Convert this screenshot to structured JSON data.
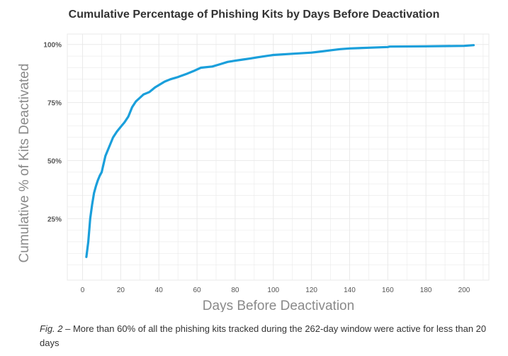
{
  "caption": {
    "fig_label": "Fig. 2",
    "text": " – More than 60% of all the phishing kits tracked during the 262-day window were active for less than 20 days"
  },
  "colors": {
    "line": "#1a9fdb",
    "grid": "#e9e9e9",
    "axis_title": "#8a8a8a"
  },
  "chart_data": {
    "type": "line",
    "title": "Cumulative Percentage of Phishing Kits by Days Before Deactivation",
    "xlabel": "Days Before Deactivation",
    "ylabel": "Cumulative % of Kits Deactivated",
    "xlim": [
      -8,
      213
    ],
    "ylim": [
      -1.5,
      104.5
    ],
    "xticks": [
      0,
      20,
      40,
      60,
      80,
      100,
      120,
      140,
      160,
      180,
      200
    ],
    "xtick_labels": [
      "0",
      "20",
      "40",
      "60",
      "80",
      "100",
      "120",
      "140",
      "160",
      "180",
      "200"
    ],
    "yticks": [
      25,
      50,
      75,
      100
    ],
    "ytick_labels": [
      "25%",
      "50%",
      "75%",
      "100%"
    ],
    "grid": true,
    "series": [
      {
        "x": [
          2,
          3,
          4,
          5,
          6,
          7,
          8,
          9,
          10,
          12,
          14,
          16,
          18,
          20,
          22,
          24,
          26,
          28,
          30,
          32,
          35,
          38,
          40,
          43,
          46,
          50,
          55,
          58,
          62,
          68,
          72,
          76,
          80,
          84,
          88,
          92,
          96,
          100,
          110,
          120,
          125,
          130,
          135,
          140,
          150,
          160,
          161,
          180,
          200,
          205
        ],
        "y": [
          8.5,
          15,
          25,
          31,
          36,
          39,
          41.5,
          43.5,
          45,
          52,
          56,
          60,
          62.5,
          64.5,
          66.5,
          69,
          73,
          75.5,
          77,
          78.5,
          79.5,
          81.5,
          82.5,
          84,
          85,
          86,
          87.5,
          88.5,
          90,
          90.5,
          91.5,
          92.5,
          93,
          93.5,
          94,
          94.5,
          95,
          95.5,
          96,
          96.5,
          97,
          97.5,
          98,
          98.3,
          98.6,
          98.9,
          99.1,
          99.2,
          99.4,
          99.7
        ]
      }
    ]
  }
}
